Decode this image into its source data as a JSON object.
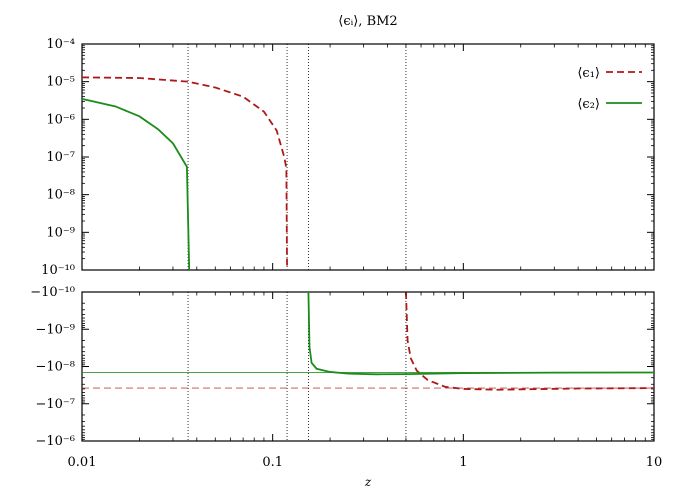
{
  "chart_data": {
    "type": "line",
    "title": "⟨ϵᵢ⟩, BM2",
    "xlabel": "z",
    "ylabel": "",
    "x_scale": "log",
    "xlim": [
      0.01,
      10
    ],
    "x_ticks": [
      "0.01",
      "0.1",
      "1",
      "10"
    ],
    "grid": false,
    "legend_position": "top-right",
    "panels": [
      {
        "name": "positive",
        "y_scale": "log",
        "ylim": [
          1e-10,
          0.0001
        ],
        "y_tick_labels": [
          "10⁻¹⁰",
          "10⁻⁹",
          "10⁻⁸",
          "10⁻⁷",
          "10⁻⁶",
          "10⁻⁵",
          "10⁻⁴"
        ]
      },
      {
        "name": "negative",
        "y_scale": "log of magnitude, negative values",
        "ylim": [
          -1e-06,
          -1e-10
        ],
        "y_tick_labels": [
          "−10⁻¹⁰",
          "−10⁻⁹",
          "−10⁻⁸",
          "−10⁻⁷",
          "−10⁻⁶"
        ]
      }
    ],
    "series": [
      {
        "name": "⟨ϵ₁⟩",
        "color": "#b01818",
        "style": "dashed",
        "points": [
          [
            0.01,
            1.3e-05
          ],
          [
            0.02,
            1.25e-05
          ],
          [
            0.036,
            1e-05
          ],
          [
            0.05,
            7e-06
          ],
          [
            0.07,
            4e-06
          ],
          [
            0.09,
            1.6e-06
          ],
          [
            0.105,
            5e-07
          ],
          [
            0.115,
            1e-07
          ],
          [
            0.118,
            5e-08
          ],
          [
            0.119,
            1e-10
          ]
        ],
        "negative_points": [
          [
            0.5,
            -1e-10
          ],
          [
            0.51,
            -2e-09
          ],
          [
            0.53,
            -6e-09
          ],
          [
            0.57,
            -1.3e-08
          ],
          [
            0.65,
            -2.3e-08
          ],
          [
            0.8,
            -3.5e-08
          ],
          [
            1.0,
            -4e-08
          ],
          [
            1.5,
            -4.2e-08
          ],
          [
            2.0,
            -4.1e-08
          ],
          [
            4.0,
            -3.9e-08
          ],
          [
            10.0,
            -3.8e-08
          ]
        ],
        "asymptote": -3.8e-08
      },
      {
        "name": "⟨ϵ₂⟩",
        "color": "#1a8c1a",
        "style": "solid",
        "points": [
          [
            0.01,
            3.5e-06
          ],
          [
            0.015,
            2.2e-06
          ],
          [
            0.02,
            1.2e-06
          ],
          [
            0.025,
            5.5e-07
          ],
          [
            0.03,
            2.3e-07
          ],
          [
            0.0355,
            5.5e-08
          ],
          [
            0.0365,
            1e-10
          ]
        ],
        "negative_points": [
          [
            0.154,
            -1e-10
          ],
          [
            0.156,
            -3e-09
          ],
          [
            0.16,
            -8e-09
          ],
          [
            0.17,
            -1.15e-08
          ],
          [
            0.2,
            -1.4e-08
          ],
          [
            0.25,
            -1.55e-08
          ],
          [
            0.35,
            -1.62e-08
          ],
          [
            0.5,
            -1.6e-08
          ],
          [
            1.0,
            -1.5e-08
          ],
          [
            3.0,
            -1.46e-08
          ],
          [
            10.0,
            -1.45e-08
          ]
        ],
        "asymptote": -1.45e-08
      }
    ],
    "vertical_markers": [
      0.036,
      0.119,
      0.154,
      0.5
    ]
  }
}
